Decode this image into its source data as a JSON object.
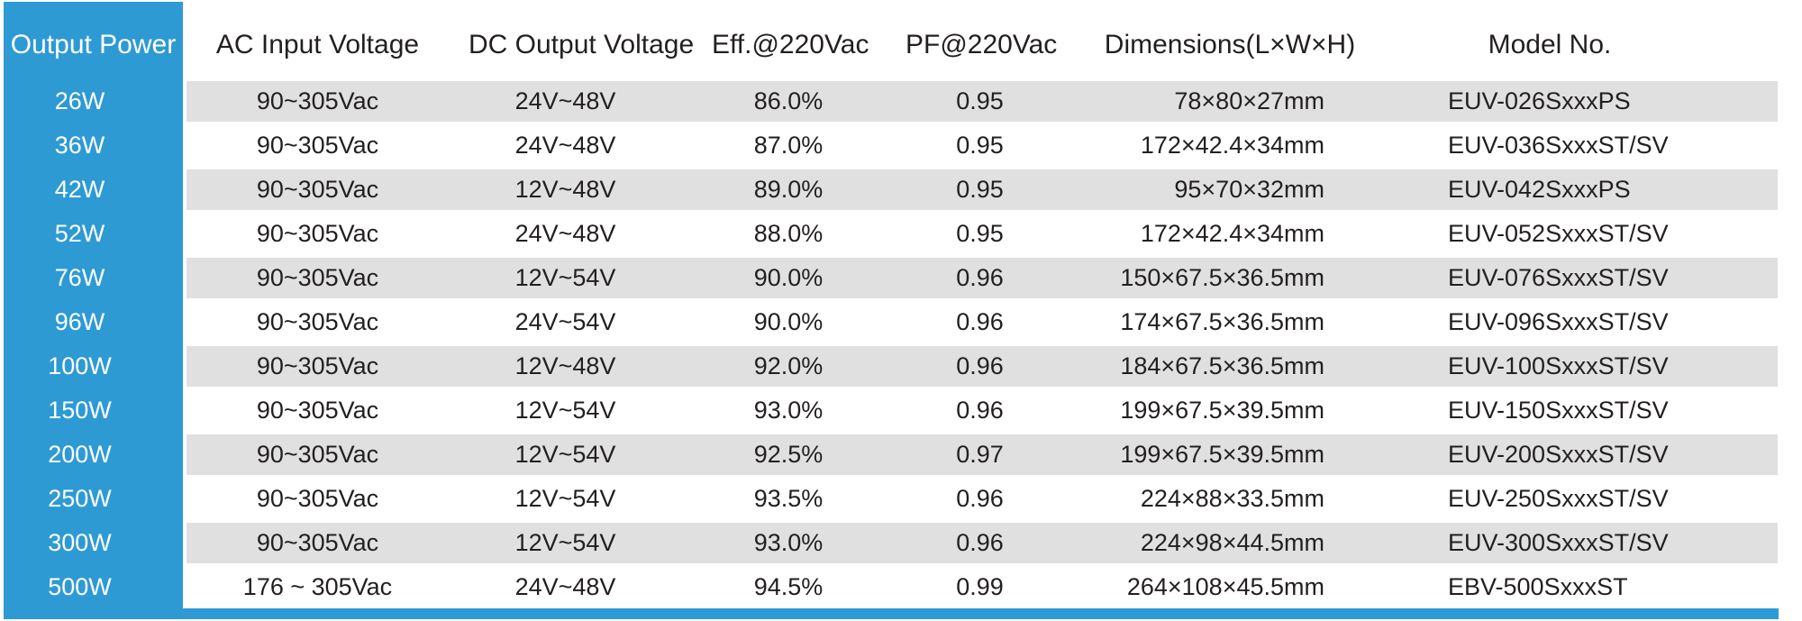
{
  "headers": {
    "power": "Output Power",
    "ac": "AC Input Voltage",
    "dc": "DC Output Voltage",
    "eff": "Eff.@220Vac",
    "pf": "PF@220Vac",
    "dim": "Dimensions(L×W×H)",
    "model": "Model No."
  },
  "rows": [
    {
      "power": "26W",
      "ac": "90~305Vac",
      "dc": "24V~48V",
      "eff": "86.0%",
      "pf": "0.95",
      "dim": "78×80×27mm",
      "model": "EUV-026SxxxPS"
    },
    {
      "power": "36W",
      "ac": "90~305Vac",
      "dc": "24V~48V",
      "eff": "87.0%",
      "pf": "0.95",
      "dim": "172×42.4×34mm",
      "model": "EUV-036SxxxST/SV"
    },
    {
      "power": "42W",
      "ac": "90~305Vac",
      "dc": "12V~48V",
      "eff": "89.0%",
      "pf": "0.95",
      "dim": "95×70×32mm",
      "model": "EUV-042SxxxPS"
    },
    {
      "power": "52W",
      "ac": "90~305Vac",
      "dc": "24V~48V",
      "eff": "88.0%",
      "pf": "0.95",
      "dim": "172×42.4×34mm",
      "model": "EUV-052SxxxST/SV"
    },
    {
      "power": "76W",
      "ac": "90~305Vac",
      "dc": "12V~54V",
      "eff": "90.0%",
      "pf": "0.96",
      "dim": "150×67.5×36.5mm",
      "model": "EUV-076SxxxST/SV"
    },
    {
      "power": "96W",
      "ac": "90~305Vac",
      "dc": "24V~54V",
      "eff": "90.0%",
      "pf": "0.96",
      "dim": "174×67.5×36.5mm",
      "model": "EUV-096SxxxST/SV"
    },
    {
      "power": "100W",
      "ac": "90~305Vac",
      "dc": "12V~48V",
      "eff": "92.0%",
      "pf": "0.96",
      "dim": "184×67.5×36.5mm",
      "model": "EUV-100SxxxST/SV"
    },
    {
      "power": "150W",
      "ac": "90~305Vac",
      "dc": "12V~54V",
      "eff": "93.0%",
      "pf": "0.96",
      "dim": "199×67.5×39.5mm",
      "model": "EUV-150SxxxST/SV"
    },
    {
      "power": "200W",
      "ac": "90~305Vac",
      "dc": "12V~54V",
      "eff": "92.5%",
      "pf": "0.97",
      "dim": "199×67.5×39.5mm",
      "model": "EUV-200SxxxST/SV"
    },
    {
      "power": "250W",
      "ac": "90~305Vac",
      "dc": "12V~54V",
      "eff": "93.5%",
      "pf": "0.96",
      "dim": "224×88×33.5mm",
      "model": "EUV-250SxxxST/SV"
    },
    {
      "power": "300W",
      "ac": "90~305Vac",
      "dc": "12V~54V",
      "eff": "93.0%",
      "pf": "0.96",
      "dim": "224×98×44.5mm",
      "model": "EUV-300SxxxST/SV"
    },
    {
      "power": "500W",
      "ac": "176 ~ 305Vac",
      "dc": "24V~48V",
      "eff": "94.5%",
      "pf": "0.99",
      "dim": "264×108×45.5mm",
      "model": "EBV-500SxxxST"
    }
  ],
  "colors": {
    "accent": "#2e9ad4",
    "stripe": "#e0e0e0",
    "text": "#231f20"
  }
}
